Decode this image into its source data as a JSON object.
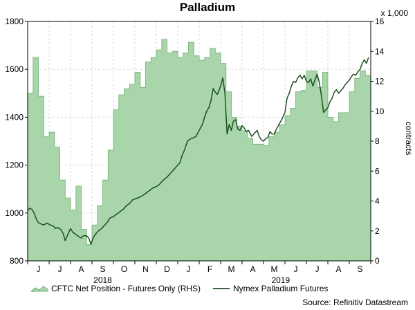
{
  "chart_data": {
    "type": "area+line",
    "title": "Palladium",
    "source": "Source: Refinitiv Datastream",
    "right_axis_multiplier": "x 1,000",
    "right_axis_label": "contracts",
    "left_axis": {
      "min": 800,
      "max": 1800,
      "ticks": [
        800,
        1000,
        1200,
        1400,
        1600,
        1800
      ]
    },
    "right_axis": {
      "min": 0,
      "max": 16,
      "ticks": [
        0,
        2,
        4,
        6,
        8,
        10,
        12,
        14,
        16
      ]
    },
    "x_range": [
      0,
      16
    ],
    "month_labels": [
      "J",
      "J",
      "A",
      "S",
      "O",
      "N",
      "D",
      "J",
      "F",
      "M",
      "A",
      "M",
      "J",
      "J",
      "A",
      "S"
    ],
    "year_labels": [
      {
        "label": "2018",
        "month_index": 3.5
      },
      {
        "label": "2019",
        "month_index": 11.8
      }
    ],
    "series": [
      {
        "name": "CFTC Net Position - Futures Only (RHS)",
        "type": "area",
        "axis": "right",
        "color": "#a8d5a9",
        "edge_color": "#6fae72",
        "points": [
          [
            0.0,
            11.2
          ],
          [
            0.25,
            11.2
          ],
          [
            0.25,
            13.6
          ],
          [
            0.5,
            13.6
          ],
          [
            0.5,
            11.0
          ],
          [
            0.75,
            11.0
          ],
          [
            0.75,
            8.3
          ],
          [
            1.0,
            8.3
          ],
          [
            1.0,
            8.6
          ],
          [
            1.25,
            8.6
          ],
          [
            1.25,
            7.6
          ],
          [
            1.5,
            7.6
          ],
          [
            1.5,
            5.4
          ],
          [
            1.75,
            5.4
          ],
          [
            1.75,
            4.2
          ],
          [
            2.0,
            4.2
          ],
          [
            2.0,
            3.4
          ],
          [
            2.25,
            3.4
          ],
          [
            2.25,
            5.0
          ],
          [
            2.5,
            5.0
          ],
          [
            2.5,
            2.1
          ],
          [
            2.75,
            2.1
          ],
          [
            2.75,
            1.1
          ],
          [
            3.0,
            1.1
          ],
          [
            3.0,
            2.4
          ],
          [
            3.25,
            2.4
          ],
          [
            3.25,
            3.7
          ],
          [
            3.5,
            3.7
          ],
          [
            3.5,
            5.4
          ],
          [
            3.75,
            5.4
          ],
          [
            3.75,
            7.4
          ],
          [
            4.0,
            7.4
          ],
          [
            4.0,
            10.1
          ],
          [
            4.25,
            10.1
          ],
          [
            4.25,
            11.1
          ],
          [
            4.5,
            11.1
          ],
          [
            4.5,
            11.5
          ],
          [
            4.75,
            11.5
          ],
          [
            4.75,
            11.8
          ],
          [
            5.0,
            11.8
          ],
          [
            5.0,
            12.6
          ],
          [
            5.25,
            12.6
          ],
          [
            5.25,
            11.6
          ],
          [
            5.5,
            11.6
          ],
          [
            5.5,
            13.3
          ],
          [
            5.75,
            13.3
          ],
          [
            5.75,
            13.6
          ],
          [
            6.0,
            13.6
          ],
          [
            6.0,
            14.1
          ],
          [
            6.25,
            14.1
          ],
          [
            6.25,
            14.8
          ],
          [
            6.5,
            14.8
          ],
          [
            6.5,
            13.9
          ],
          [
            6.75,
            13.9
          ],
          [
            6.75,
            14.0
          ],
          [
            7.0,
            14.0
          ],
          [
            7.0,
            13.6
          ],
          [
            7.25,
            13.6
          ],
          [
            7.25,
            13.9
          ],
          [
            7.5,
            13.9
          ],
          [
            7.5,
            14.6
          ],
          [
            7.75,
            14.6
          ],
          [
            7.75,
            13.7
          ],
          [
            8.0,
            13.7
          ],
          [
            8.0,
            13.4
          ],
          [
            8.25,
            13.4
          ],
          [
            8.25,
            13.6
          ],
          [
            8.5,
            13.6
          ],
          [
            8.5,
            14.2
          ],
          [
            8.75,
            14.2
          ],
          [
            8.75,
            13.9
          ],
          [
            9.0,
            13.9
          ],
          [
            9.0,
            13.2
          ],
          [
            9.25,
            13.2
          ],
          [
            9.25,
            11.3
          ],
          [
            9.5,
            11.3
          ],
          [
            9.5,
            9.6
          ],
          [
            9.75,
            9.6
          ],
          [
            9.75,
            9.0
          ],
          [
            10.0,
            9.0
          ],
          [
            10.0,
            8.7
          ],
          [
            10.25,
            8.7
          ],
          [
            10.25,
            8.2
          ],
          [
            10.5,
            8.2
          ],
          [
            10.5,
            7.8
          ],
          [
            10.75,
            7.8
          ],
          [
            10.75,
            7.8
          ],
          [
            11.0,
            7.8
          ],
          [
            11.0,
            7.7
          ],
          [
            11.25,
            7.7
          ],
          [
            11.25,
            8.3
          ],
          [
            11.5,
            8.3
          ],
          [
            11.5,
            8.6
          ],
          [
            11.75,
            8.6
          ],
          [
            11.75,
            9.1
          ],
          [
            12.0,
            9.1
          ],
          [
            12.0,
            9.7
          ],
          [
            12.25,
            9.7
          ],
          [
            12.25,
            10.2
          ],
          [
            12.5,
            10.2
          ],
          [
            12.5,
            11.3
          ],
          [
            12.75,
            11.3
          ],
          [
            12.75,
            11.4
          ],
          [
            13.0,
            11.4
          ],
          [
            13.0,
            12.7
          ],
          [
            13.25,
            12.7
          ],
          [
            13.25,
            12.7
          ],
          [
            13.5,
            12.7
          ],
          [
            13.5,
            11.6
          ],
          [
            13.75,
            11.6
          ],
          [
            13.75,
            12.6
          ],
          [
            14.0,
            12.6
          ],
          [
            14.0,
            9.6
          ],
          [
            14.25,
            9.6
          ],
          [
            14.25,
            9.3
          ],
          [
            14.5,
            9.3
          ],
          [
            14.5,
            9.9
          ],
          [
            14.75,
            9.9
          ],
          [
            14.75,
            9.9
          ],
          [
            15.0,
            9.9
          ],
          [
            15.0,
            11.3
          ],
          [
            15.25,
            11.3
          ],
          [
            15.25,
            12.2
          ],
          [
            15.5,
            12.2
          ],
          [
            15.5,
            12.7
          ],
          [
            15.75,
            12.7
          ],
          [
            15.75,
            12.4
          ],
          [
            16.0,
            12.4
          ]
        ]
      },
      {
        "name": "Nymex Palladium Futures",
        "type": "line",
        "axis": "left",
        "color": "#1f4d23",
        "points": [
          [
            0.0,
            1010
          ],
          [
            0.1,
            1020
          ],
          [
            0.2,
            1015
          ],
          [
            0.3,
            1000
          ],
          [
            0.4,
            975
          ],
          [
            0.5,
            960
          ],
          [
            0.6,
            955
          ],
          [
            0.75,
            950
          ],
          [
            0.9,
            958
          ],
          [
            1.05,
            950
          ],
          [
            1.2,
            945
          ],
          [
            1.3,
            935
          ],
          [
            1.4,
            940
          ],
          [
            1.55,
            930
          ],
          [
            1.65,
            915
          ],
          [
            1.75,
            885
          ],
          [
            1.85,
            905
          ],
          [
            2.0,
            935
          ],
          [
            2.1,
            920
          ],
          [
            2.25,
            910
          ],
          [
            2.4,
            900
          ],
          [
            2.5,
            895
          ],
          [
            2.6,
            905
          ],
          [
            2.75,
            905
          ],
          [
            2.85,
            895
          ],
          [
            2.95,
            870
          ],
          [
            3.05,
            895
          ],
          [
            3.15,
            910
          ],
          [
            3.3,
            925
          ],
          [
            3.45,
            935
          ],
          [
            3.55,
            945
          ],
          [
            3.7,
            960
          ],
          [
            3.85,
            980
          ],
          [
            4.0,
            985
          ],
          [
            4.15,
            995
          ],
          [
            4.3,
            1005
          ],
          [
            4.45,
            1015
          ],
          [
            4.6,
            1030
          ],
          [
            4.75,
            1040
          ],
          [
            4.9,
            1055
          ],
          [
            5.05,
            1060
          ],
          [
            5.2,
            1065
          ],
          [
            5.4,
            1075
          ],
          [
            5.55,
            1085
          ],
          [
            5.7,
            1095
          ],
          [
            5.85,
            1105
          ],
          [
            6.0,
            1110
          ],
          [
            6.15,
            1120
          ],
          [
            6.3,
            1135
          ],
          [
            6.5,
            1150
          ],
          [
            6.65,
            1165
          ],
          [
            6.8,
            1180
          ],
          [
            6.95,
            1195
          ],
          [
            7.1,
            1210
          ],
          [
            7.2,
            1240
          ],
          [
            7.3,
            1260
          ],
          [
            7.45,
            1300
          ],
          [
            7.6,
            1310
          ],
          [
            7.75,
            1315
          ],
          [
            7.85,
            1320
          ],
          [
            8.0,
            1345
          ],
          [
            8.15,
            1370
          ],
          [
            8.25,
            1400
          ],
          [
            8.35,
            1425
          ],
          [
            8.45,
            1440
          ],
          [
            8.55,
            1470
          ],
          [
            8.65,
            1520
          ],
          [
            8.75,
            1505
          ],
          [
            8.85,
            1495
          ],
          [
            9.0,
            1530
          ],
          [
            9.1,
            1565
          ],
          [
            9.2,
            1500
          ],
          [
            9.3,
            1330
          ],
          [
            9.4,
            1370
          ],
          [
            9.5,
            1345
          ],
          [
            9.6,
            1385
          ],
          [
            9.7,
            1390
          ],
          [
            9.8,
            1350
          ],
          [
            9.9,
            1345
          ],
          [
            10.0,
            1365
          ],
          [
            10.1,
            1355
          ],
          [
            10.2,
            1340
          ],
          [
            10.3,
            1345
          ],
          [
            10.45,
            1320
          ],
          [
            10.55,
            1330
          ],
          [
            10.7,
            1345
          ],
          [
            10.8,
            1320
          ],
          [
            10.9,
            1305
          ],
          [
            11.0,
            1300
          ],
          [
            11.1,
            1310
          ],
          [
            11.2,
            1315
          ],
          [
            11.3,
            1340
          ],
          [
            11.4,
            1330
          ],
          [
            11.5,
            1330
          ],
          [
            11.6,
            1350
          ],
          [
            11.75,
            1375
          ],
          [
            11.85,
            1390
          ],
          [
            12.0,
            1420
          ],
          [
            12.1,
            1480
          ],
          [
            12.2,
            1500
          ],
          [
            12.3,
            1530
          ],
          [
            12.4,
            1550
          ],
          [
            12.5,
            1545
          ],
          [
            12.6,
            1565
          ],
          [
            12.7,
            1575
          ],
          [
            12.8,
            1560
          ],
          [
            12.9,
            1575
          ],
          [
            13.0,
            1550
          ],
          [
            13.1,
            1545
          ],
          [
            13.2,
            1560
          ],
          [
            13.3,
            1530
          ],
          [
            13.4,
            1555
          ],
          [
            13.5,
            1580
          ],
          [
            13.6,
            1545
          ],
          [
            13.7,
            1490
          ],
          [
            13.8,
            1420
          ],
          [
            13.9,
            1430
          ],
          [
            14.0,
            1440
          ],
          [
            14.1,
            1465
          ],
          [
            14.2,
            1480
          ],
          [
            14.3,
            1505
          ],
          [
            14.4,
            1515
          ],
          [
            14.5,
            1500
          ],
          [
            14.6,
            1510
          ],
          [
            14.7,
            1520
          ],
          [
            14.8,
            1535
          ],
          [
            14.9,
            1545
          ],
          [
            15.0,
            1555
          ],
          [
            15.1,
            1570
          ],
          [
            15.2,
            1580
          ],
          [
            15.3,
            1575
          ],
          [
            15.4,
            1590
          ],
          [
            15.5,
            1600
          ],
          [
            15.6,
            1625
          ],
          [
            15.7,
            1640
          ],
          [
            15.8,
            1625
          ],
          [
            15.9,
            1650
          ]
        ]
      }
    ],
    "legend_position": "bottom"
  }
}
